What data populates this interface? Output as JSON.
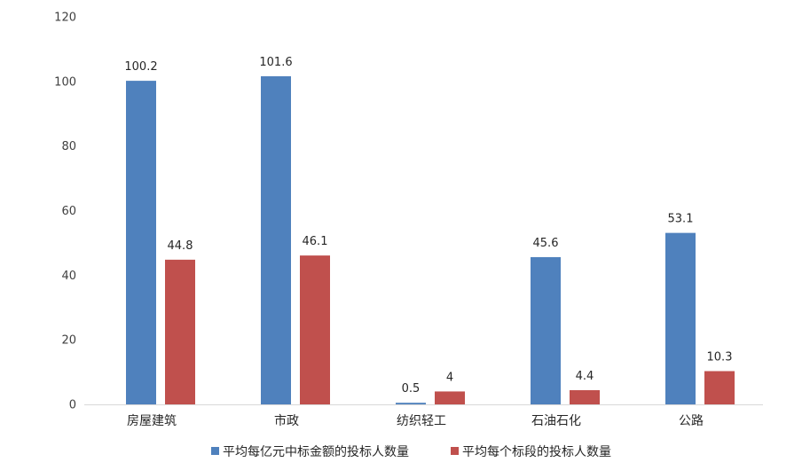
{
  "chart_data": {
    "type": "bar",
    "title": "",
    "xlabel": "",
    "ylabel": "",
    "categories": [
      "房屋建筑",
      "市政",
      "纺织轻工",
      "石油石化",
      "公路"
    ],
    "series": [
      {
        "name": "平均每亿元中标金额的投标人数量",
        "color": "#4F81BD",
        "values": [
          100.2,
          101.6,
          0.5,
          45.6,
          53.1
        ],
        "labels": [
          "100.2",
          "101.6",
          "0.5",
          "45.6",
          "53.1"
        ]
      },
      {
        "name": "平均每个标段的投标人数量",
        "color": "#C0504D",
        "values": [
          44.8,
          46.1,
          4,
          4.4,
          10.3
        ],
        "labels": [
          "44.8",
          "46.1",
          "4",
          "4.4",
          "10.3"
        ]
      }
    ],
    "ylim": [
      0,
      120
    ],
    "yticks": [
      "0",
      "20",
      "40",
      "60",
      "80",
      "100",
      "120"
    ],
    "grid": false,
    "legend_position": "bottom"
  }
}
